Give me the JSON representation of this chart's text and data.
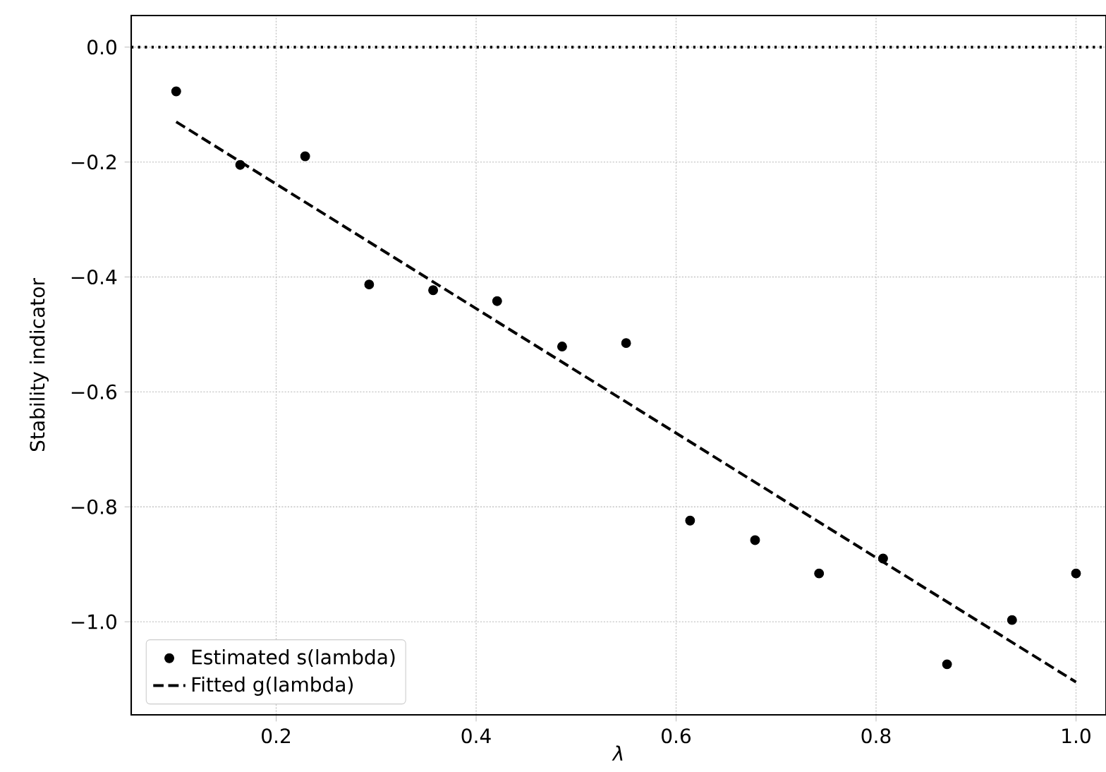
{
  "chart_data": {
    "type": "scatter",
    "xlabel": "λ",
    "ylabel": "Stability indicator",
    "xlim": [
      0.055,
      1.03
    ],
    "ylim": [
      -1.162,
      0.055
    ],
    "xticks": [
      0.2,
      0.4,
      0.6,
      0.8,
      {
        "value": 1.0,
        "label": "1.0"
      }
    ],
    "yticks": [
      {
        "value": -1.0,
        "label": "−1.0"
      },
      {
        "value": -0.8,
        "label": "−0.8"
      },
      {
        "value": -0.6,
        "label": "−0.6"
      },
      {
        "value": -0.4,
        "label": "−0.4"
      },
      {
        "value": -0.2,
        "label": "−0.2"
      },
      {
        "value": 0.0,
        "label": "0.0"
      }
    ],
    "grid": true,
    "legend": "bottom left",
    "series": [
      {
        "name": "Estimated s(lambda)",
        "marker": "circle",
        "color": "#000000",
        "x": [
          0.1,
          0.164,
          0.229,
          0.293,
          0.357,
          0.421,
          0.486,
          0.55,
          0.614,
          0.679,
          0.743,
          0.807,
          0.871,
          0.936,
          1.0
        ],
        "values": [
          -0.077,
          -0.205,
          -0.19,
          -0.413,
          -0.423,
          -0.442,
          -0.521,
          -0.515,
          -0.824,
          -0.858,
          -0.916,
          -0.89,
          -1.074,
          -0.997,
          -0.916
        ]
      },
      {
        "name": "Fitted g(lambda)",
        "type": "line",
        "line_style": "dashed",
        "color": "#000000",
        "x": [
          0.1,
          1.0
        ],
        "values": [
          -0.13,
          -1.105
        ]
      }
    ],
    "ref_lines": [
      {
        "axis": "y",
        "value": 0.0,
        "line_style": "dotted",
        "color": "#000000"
      }
    ]
  }
}
